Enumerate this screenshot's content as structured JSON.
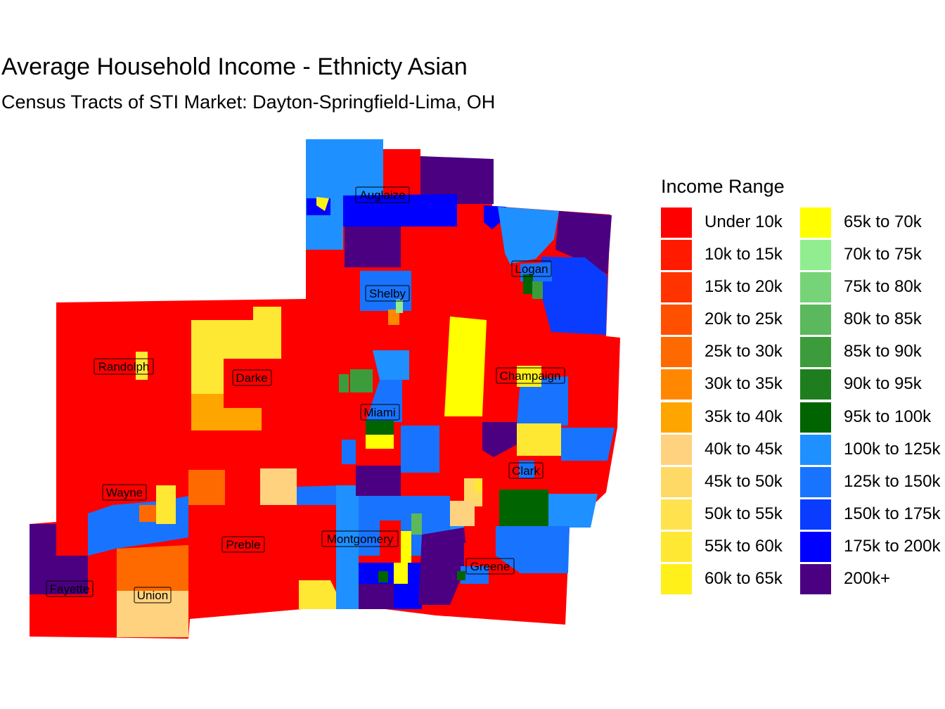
{
  "title": "Average Household Income - Ethnicty Asian",
  "subtitle": "Census Tracts of STI Market: Dayton-Springfield-Lima, OH",
  "legend": {
    "title": "Income Range",
    "items": [
      {
        "label": "Under 10k",
        "color": "#FF0000"
      },
      {
        "label": "10k to 15k",
        "color": "#FF1A00"
      },
      {
        "label": "15k to 20k",
        "color": "#FF3300"
      },
      {
        "label": "20k to 25k",
        "color": "#FF5000"
      },
      {
        "label": "25k to 30k",
        "color": "#FF6A00"
      },
      {
        "label": "30k to 35k",
        "color": "#FF8800"
      },
      {
        "label": "35k to 40k",
        "color": "#FFA500"
      },
      {
        "label": "40k to 45k",
        "color": "#FFD27F"
      },
      {
        "label": "45k to 50k",
        "color": "#FFD966"
      },
      {
        "label": "50k to 55k",
        "color": "#FFE24D"
      },
      {
        "label": "55k to 60k",
        "color": "#FFE833"
      },
      {
        "label": "60k to 65k",
        "color": "#FFF01A"
      },
      {
        "label": "65k to 70k",
        "color": "#FFFF00"
      },
      {
        "label": "70k to 75k",
        "color": "#90EE90"
      },
      {
        "label": "75k to 80k",
        "color": "#77D377"
      },
      {
        "label": "80k to 85k",
        "color": "#5CB85C"
      },
      {
        "label": "85k to 90k",
        "color": "#3C9C3C"
      },
      {
        "label": "90k to 95k",
        "color": "#1E7E1E"
      },
      {
        "label": "95k to 100k",
        "color": "#006400"
      },
      {
        "label": "100k to 125k",
        "color": "#1E90FF"
      },
      {
        "label": "125k to 150k",
        "color": "#1874FF"
      },
      {
        "label": "150k to 175k",
        "color": "#0A3CFF"
      },
      {
        "label": "175k to 200k",
        "color": "#0000FF"
      },
      {
        "label": "200k+",
        "color": "#4B0082"
      }
    ]
  },
  "counties": [
    "Auglaize",
    "Logan",
    "Shelby",
    "Randolph",
    "Darke",
    "Champaign",
    "Miami",
    "Clark",
    "Wayne",
    "Preble",
    "Montgomery",
    "Greene",
    "Fayette",
    "Union"
  ]
}
